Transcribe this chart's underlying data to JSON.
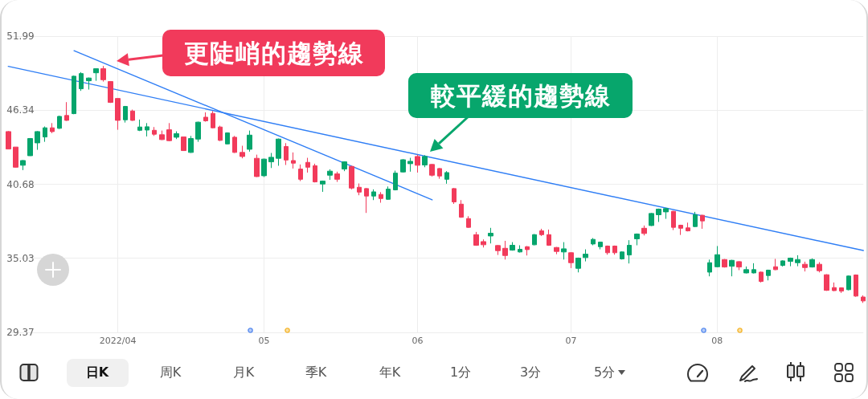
{
  "chart_data": {
    "type": "candlestick",
    "categories": [
      null,
      null,
      null,
      null,
      null,
      null,
      null,
      null,
      null,
      null,
      null,
      null,
      null,
      null,
      null,
      "2022/04",
      null,
      null,
      null,
      null,
      null,
      null,
      null,
      null,
      null,
      null,
      null,
      null,
      null,
      null,
      null,
      null,
      null,
      null,
      null,
      "05",
      null,
      null,
      null,
      null,
      null,
      null,
      null,
      null,
      null,
      null,
      null,
      null,
      null,
      null,
      null,
      null,
      null,
      null,
      null,
      null,
      "06",
      null,
      null,
      null,
      null,
      null,
      null,
      null,
      null,
      null,
      null,
      null,
      null,
      null,
      null,
      null,
      null,
      null,
      null,
      null,
      null,
      "07",
      null,
      null,
      null,
      null,
      null,
      null,
      null,
      null,
      null,
      null,
      null,
      null,
      null,
      null,
      null,
      null,
      null,
      null,
      null,
      "08",
      null,
      null,
      null,
      null,
      null,
      null,
      null,
      null,
      null,
      null,
      null,
      null,
      null,
      null,
      null,
      null,
      null,
      null,
      null,
      null
    ],
    "ohlc": [
      [
        44.7,
        44.74,
        43.35,
        43.37
      ],
      [
        43.52,
        43.52,
        41.96,
        41.98
      ],
      [
        42.13,
        42.53,
        41.76,
        42.49
      ],
      [
        42.86,
        44.21,
        42.84,
        44.17
      ],
      [
        43.84,
        44.74,
        43.31,
        44.7
      ],
      [
        44.29,
        45.09,
        43.92,
        44.99
      ],
      [
        44.99,
        45.35,
        44.58,
        44.7
      ],
      [
        44.95,
        45.91,
        44.9,
        45.86
      ],
      [
        45.93,
        46.95,
        45.52,
        45.56
      ],
      [
        46.07,
        48.97,
        46.03,
        48.93
      ],
      [
        47.97,
        49.24,
        47.81,
        49.13
      ],
      [
        48.58,
        48.83,
        47.91,
        48.79
      ],
      [
        49.19,
        49.5,
        48.58,
        49.5
      ],
      [
        49.5,
        49.71,
        48.52,
        48.66
      ],
      [
        48.52,
        48.56,
        46.89,
        46.93
      ],
      [
        47.23,
        47.23,
        44.84,
        45.56
      ],
      [
        45.6,
        46.66,
        45.39,
        46.62
      ],
      [
        46.27,
        46.38,
        45.52,
        45.56
      ],
      [
        44.8,
        45.62,
        44.74,
        45.05
      ],
      [
        44.82,
        45.35,
        44.33,
        45.07
      ],
      [
        44.8,
        45.05,
        44.37,
        44.5
      ],
      [
        44.46,
        44.78,
        44.05,
        44.09
      ],
      [
        44.84,
        45.35,
        43.96,
        44.01
      ],
      [
        44.27,
        44.72,
        44.13,
        44.54
      ],
      [
        44.29,
        44.29,
        43.23,
        43.25
      ],
      [
        43.11,
        44.37,
        43.07,
        44.17
      ],
      [
        44.13,
        45.46,
        43.92,
        45.42
      ],
      [
        45.8,
        46.17,
        45.46,
        45.52
      ],
      [
        46.09,
        46.27,
        44.95,
        44.99
      ],
      [
        45.05,
        45.15,
        43.98,
        44.03
      ],
      [
        43.76,
        44.64,
        43.72,
        44.6
      ],
      [
        44.27,
        44.37,
        43.07,
        43.11
      ],
      [
        43.11,
        43.62,
        42.66,
        42.8
      ],
      [
        43.35,
        44.78,
        43.17,
        44.43
      ],
      [
        42.66,
        42.94,
        41.23,
        41.27
      ],
      [
        41.33,
        42.64,
        41.23,
        42.6
      ],
      [
        42.39,
        43.07,
        41.92,
        42.74
      ],
      [
        42.66,
        44.17,
        42.09,
        44.13
      ],
      [
        43.56,
        43.82,
        42.15,
        42.53
      ],
      [
        42.49,
        43.11,
        41.88,
        42.29
      ],
      [
        41.84,
        42.19,
        40.92,
        41.06
      ],
      [
        42.35,
        42.7,
        41.57,
        41.98
      ],
      [
        42.09,
        42.25,
        40.82,
        40.86
      ],
      [
        40.7,
        40.96,
        40.1,
        40.92
      ],
      [
        41.37,
        41.82,
        41.02,
        41.68
      ],
      [
        41.47,
        41.64,
        40.86,
        41.06
      ],
      [
        41.84,
        42.43,
        41.68,
        42.39
      ],
      [
        42.04,
        42.09,
        40.29,
        40.39
      ],
      [
        40.45,
        40.74,
        39.84,
        40.08
      ],
      [
        40.35,
        40.39,
        38.49,
        39.78
      ],
      [
        39.78,
        40.29,
        39.47,
        40.1
      ],
      [
        39.9,
        40.08,
        39.27,
        39.59
      ],
      [
        39.53,
        40.51,
        39.49,
        40.31
      ],
      [
        40.25,
        41.72,
        40.21,
        41.53
      ],
      [
        41.62,
        42.6,
        41.57,
        42.55
      ],
      [
        42.25,
        42.7,
        41.64,
        42.43
      ],
      [
        42.8,
        42.94,
        41.57,
        42.13
      ],
      [
        42.15,
        42.9,
        41.98,
        42.8
      ],
      [
        42.19,
        42.23,
        41.27,
        41.37
      ],
      [
        41.88,
        41.92,
        41.1,
        41.31
      ],
      [
        41.06,
        41.68,
        40.72,
        41.57
      ],
      [
        40.35,
        40.39,
        39.18,
        39.33
      ],
      [
        39.16,
        39.47,
        38.12,
        38.16
      ],
      [
        38.06,
        38.24,
        37.35,
        37.39
      ],
      [
        36.83,
        37.04,
        35.98,
        36.02
      ],
      [
        36.3,
        36.47,
        35.85,
        36.06
      ],
      [
        36.73,
        37.35,
        36.16,
        36.94
      ],
      [
        36.0,
        36.04,
        35.28,
        35.61
      ],
      [
        35.79,
        36.36,
        34.93,
        35.24
      ],
      [
        35.65,
        36.26,
        35.61,
        36.02
      ],
      [
        35.51,
        36.02,
        35.47,
        35.71
      ],
      [
        35.91,
        35.96,
        35.24,
        35.69
      ],
      [
        36.06,
        36.88,
        36.02,
        36.83
      ],
      [
        37.12,
        37.28,
        36.73,
        36.83
      ],
      [
        36.83,
        37.22,
        35.98,
        36.02
      ],
      [
        35.85,
        35.89,
        35.34,
        35.55
      ],
      [
        35.51,
        36.26,
        34.93,
        35.75
      ],
      [
        35.45,
        35.49,
        34.28,
        34.69
      ],
      [
        34.26,
        35.08,
        33.95,
        35.04
      ],
      [
        35.08,
        35.71,
        34.79,
        35.34
      ],
      [
        36.12,
        36.57,
        36.02,
        36.47
      ],
      [
        35.91,
        36.3,
        35.71,
        36.26
      ],
      [
        35.96,
        36.0,
        35.3,
        35.45
      ],
      [
        35.96,
        36.0,
        35.3,
        35.45
      ],
      [
        34.98,
        35.55,
        34.93,
        35.51
      ],
      [
        35.28,
        36.41,
        34.63,
        36.02
      ],
      [
        36.51,
        36.92,
        36.02,
        36.88
      ],
      [
        37.32,
        37.53,
        36.77,
        36.92
      ],
      [
        37.53,
        38.49,
        37.49,
        38.45
      ],
      [
        38.35,
        38.82,
        37.8,
        38.78
      ],
      [
        38.57,
        38.88,
        38.04,
        38.82
      ],
      [
        38.61,
        38.65,
        37.18,
        37.39
      ],
      [
        37.55,
        37.59,
        36.81,
        37.32
      ],
      [
        37.35,
        37.75,
        37.08,
        37.12
      ],
      [
        37.45,
        38.57,
        37.41,
        38.35
      ],
      [
        38.31,
        38.35,
        37.28,
        37.88
      ],
      [
        33.97,
        34.93,
        33.65,
        34.69
      ],
      [
        34.38,
        35.96,
        34.34,
        35.3
      ],
      [
        34.93,
        34.97,
        34.32,
        34.36
      ],
      [
        34.42,
        34.91,
        33.65,
        34.87
      ],
      [
        34.77,
        34.81,
        34.12,
        34.36
      ],
      [
        33.91,
        34.4,
        33.87,
        34.16
      ],
      [
        33.91,
        34.65,
        33.87,
        34.16
      ],
      [
        33.97,
        34.01,
        33.18,
        33.26
      ],
      [
        33.71,
        34.16,
        33.34,
        34.12
      ],
      [
        34.38,
        34.98,
        34.12,
        34.16
      ],
      [
        34.48,
        34.87,
        34.4,
        34.83
      ],
      [
        34.79,
        35.08,
        34.42,
        35.04
      ],
      [
        34.69,
        35.26,
        34.42,
        34.93
      ],
      [
        34.57,
        34.77,
        34.02,
        34.32
      ],
      [
        34.36,
        35.02,
        34.32,
        34.93
      ],
      [
        34.57,
        34.73,
        33.95,
        34.08
      ],
      [
        33.77,
        33.81,
        32.54,
        32.58
      ],
      [
        32.79,
        33.18,
        32.52,
        32.56
      ],
      [
        32.77,
        32.81,
        32.38,
        32.52
      ],
      [
        32.63,
        33.71,
        32.58,
        33.67
      ],
      [
        33.75,
        33.79,
        32.09,
        32.14
      ],
      [
        32.07,
        32.2,
        31.62,
        31.77
      ]
    ],
    "colors": [
      "#f23b5b",
      "#f23b5b",
      "#05a56c",
      "#05a56c",
      "#05a56c",
      "#05a56c",
      "#f23b5b",
      "#05a56c",
      "#f23b5b",
      "#05a56c",
      "#05a56c",
      "#05a56c",
      "#05a56c",
      "#f23b5b",
      "#f23b5b",
      "#f23b5b",
      "#05a56c",
      "#f23b5b",
      "#05a56c",
      "#05a56c",
      "#f23b5b",
      "#f23b5b",
      "#f23b5b",
      "#05a56c",
      "#f23b5b",
      "#05a56c",
      "#05a56c",
      "#f23b5b",
      "#f23b5b",
      "#f23b5b",
      "#05a56c",
      "#f23b5b",
      "#f23b5b",
      "#05a56c",
      "#f23b5b",
      "#05a56c",
      "#05a56c",
      "#05a56c",
      "#f23b5b",
      "#f23b5b",
      "#f23b5b",
      "#f23b5b",
      "#f23b5b",
      "#05a56c",
      "#05a56c",
      "#f23b5b",
      "#05a56c",
      "#f23b5b",
      "#f23b5b",
      "#f23b5b",
      "#05a56c",
      "#f23b5b",
      "#05a56c",
      "#05a56c",
      "#05a56c",
      "#05a56c",
      "#f23b5b",
      "#05a56c",
      "#f23b5b",
      "#f23b5b",
      "#05a56c",
      "#f23b5b",
      "#f23b5b",
      "#f23b5b",
      "#f23b5b",
      "#f23b5b",
      "#05a56c",
      "#f23b5b",
      "#f23b5b",
      "#05a56c",
      "#05a56c",
      "#f23b5b",
      "#05a56c",
      "#f23b5b",
      "#f23b5b",
      "#f23b5b",
      "#05a56c",
      "#f23b5b",
      "#05a56c",
      "#05a56c",
      "#05a56c",
      "#05a56c",
      "#f23b5b",
      "#f23b5b",
      "#05a56c",
      "#05a56c",
      "#05a56c",
      "#f23b5b",
      "#05a56c",
      "#05a56c",
      "#05a56c",
      "#f23b5b",
      "#f23b5b",
      "#f23b5b",
      "#05a56c",
      "#f23b5b",
      "#05a56c",
      "#05a56c",
      "#f23b5b",
      "#05a56c",
      "#f23b5b",
      "#05a56c",
      "#05a56c",
      "#f23b5b",
      "#05a56c",
      "#f23b5b",
      "#05a56c",
      "#05a56c",
      "#05a56c",
      "#f23b5b",
      "#05a56c",
      "#f23b5b",
      "#f23b5b",
      "#f23b5b",
      "#f23b5b",
      "#05a56c",
      "#f23b5b",
      "#f23b5b"
    ],
    "series": [
      {
        "type": "line",
        "color": "#2f7ef5",
        "values": [
          null,
          null,
          null,
          null,
          null,
          null,
          null,
          null,
          null,
          50.88,
          null,
          null,
          null,
          null,
          null,
          null,
          null,
          null,
          null,
          null,
          null,
          null,
          null,
          null,
          null,
          null,
          null,
          null,
          null,
          null,
          null,
          null,
          null,
          null,
          null,
          null,
          null,
          null,
          null,
          null,
          null,
          null,
          null,
          null,
          null,
          null,
          null,
          null,
          null,
          null,
          null,
          null,
          null,
          null,
          null,
          null,
          null,
          null,
          39.49,
          null,
          null,
          null,
          null,
          null,
          null,
          null,
          null,
          null,
          null,
          null,
          null,
          null,
          null,
          null,
          null,
          null,
          null,
          null,
          null,
          null,
          null,
          null,
          null,
          null,
          null,
          null,
          null,
          null,
          null,
          null,
          null,
          null,
          null,
          null,
          null,
          null,
          null,
          null,
          null,
          null,
          null,
          null,
          null,
          null,
          null,
          null,
          null,
          null,
          null,
          null,
          null,
          null,
          null,
          null,
          null,
          null,
          null,
          null
        ]
      },
      {
        "type": "line",
        "color": "#2f7ef5",
        "values": [
          49.68,
          null,
          null,
          null,
          null,
          null,
          null,
          null,
          null,
          null,
          null,
          null,
          null,
          null,
          null,
          null,
          null,
          null,
          null,
          null,
          null,
          null,
          null,
          null,
          null,
          null,
          null,
          null,
          null,
          null,
          null,
          null,
          null,
          null,
          null,
          null,
          null,
          null,
          null,
          null,
          null,
          null,
          null,
          null,
          null,
          null,
          null,
          null,
          null,
          null,
          null,
          null,
          null,
          null,
          null,
          null,
          null,
          null,
          null,
          null,
          null,
          null,
          null,
          null,
          null,
          null,
          null,
          null,
          null,
          null,
          null,
          null,
          null,
          null,
          null,
          null,
          null,
          null,
          null,
          null,
          null,
          null,
          null,
          null,
          null,
          null,
          null,
          null,
          null,
          null,
          null,
          null,
          null,
          null,
          null,
          null,
          null,
          null,
          null,
          null,
          null,
          null,
          null,
          null,
          null,
          null,
          null,
          null,
          null,
          null,
          null,
          null,
          null,
          null,
          null,
          null,
          null,
          35.62
        ]
      }
    ],
    "ylim": [
      29.37,
      51.99
    ],
    "yticks": [
      29.37,
      35.03,
      40.68,
      46.34,
      51.99
    ],
    "grid": true,
    "annotations": [
      "更陡峭的趨勢線",
      "較平緩的趨勢線",
      "日K",
      "周K",
      "月K",
      "季K",
      "年K",
      "1分",
      "3分",
      "5分"
    ]
  }
}
